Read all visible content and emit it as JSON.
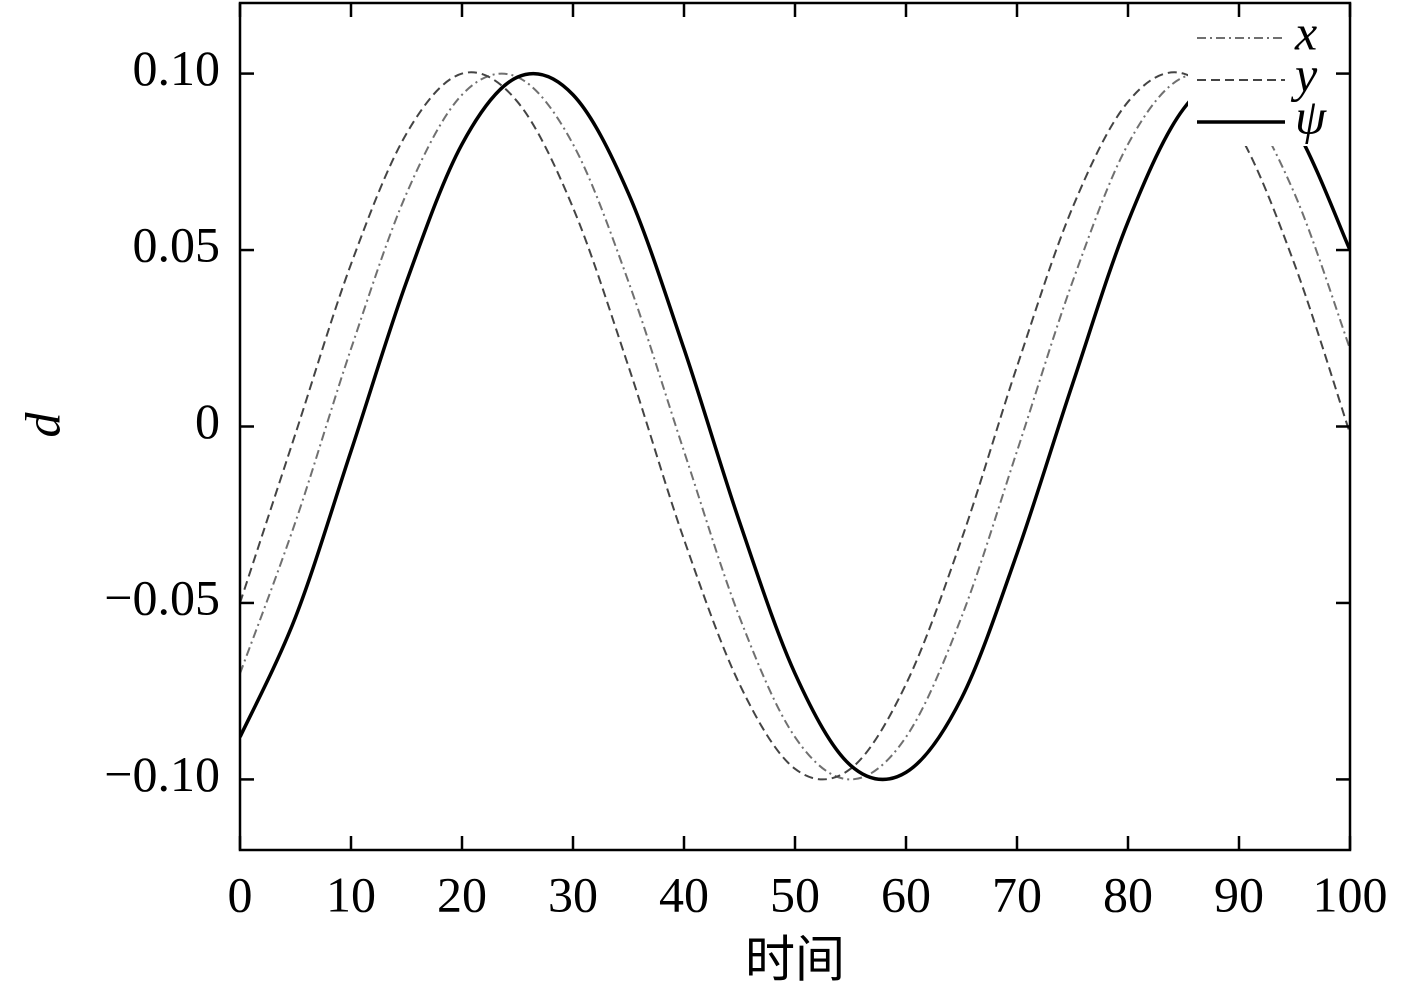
{
  "chart_data": {
    "type": "line",
    "x_label": "时间",
    "y_label": "d",
    "x": [
      0,
      5,
      10,
      15,
      20,
      25,
      30,
      35,
      40,
      45,
      50,
      55,
      60,
      65,
      70,
      75,
      80,
      85,
      90,
      95,
      100
    ],
    "series": [
      {
        "name": "x",
        "color": "#707070",
        "linestyle": "dashdot",
        "values": [
          -0.07,
          -0.027,
          0.022,
          0.066,
          0.094,
          0.099,
          0.08,
          0.041,
          -0.007,
          -0.054,
          -0.088,
          -0.1,
          -0.088,
          -0.054,
          -0.007,
          0.041,
          0.08,
          0.099,
          0.094,
          0.066,
          0.022
        ]
      },
      {
        "name": "y",
        "color": "#444444",
        "linestyle": "dashed",
        "values": [
          -0.05,
          -0.002,
          0.046,
          0.083,
          0.1,
          0.092,
          0.062,
          0.017,
          -0.032,
          -0.073,
          -0.097,
          -0.097,
          -0.073,
          -0.032,
          0.017,
          0.062,
          0.092,
          0.1,
          0.083,
          0.046,
          -0.002
        ]
      },
      {
        "name": "ψ",
        "color": "#000000",
        "linestyle": "solid",
        "values": [
          -0.088,
          -0.054,
          -0.007,
          0.041,
          0.08,
          0.099,
          0.094,
          0.066,
          0.022,
          -0.027,
          -0.07,
          -0.096,
          -0.098,
          -0.077,
          -0.036,
          0.012,
          0.058,
          0.09,
          0.1,
          0.085,
          0.05
        ]
      }
    ],
    "xlim": [
      0,
      100
    ],
    "xticks": [
      0,
      10,
      20,
      30,
      40,
      50,
      60,
      70,
      80,
      90,
      100
    ],
    "ylim": [
      -0.12,
      0.12
    ],
    "yticks": [
      {
        "value": -0.1,
        "label": "−0.10"
      },
      {
        "value": -0.05,
        "label": "−0.05"
      },
      0,
      0.05,
      {
        "value": 0.1,
        "label": "0.10"
      }
    ],
    "grid": false,
    "legend": "upper right"
  }
}
